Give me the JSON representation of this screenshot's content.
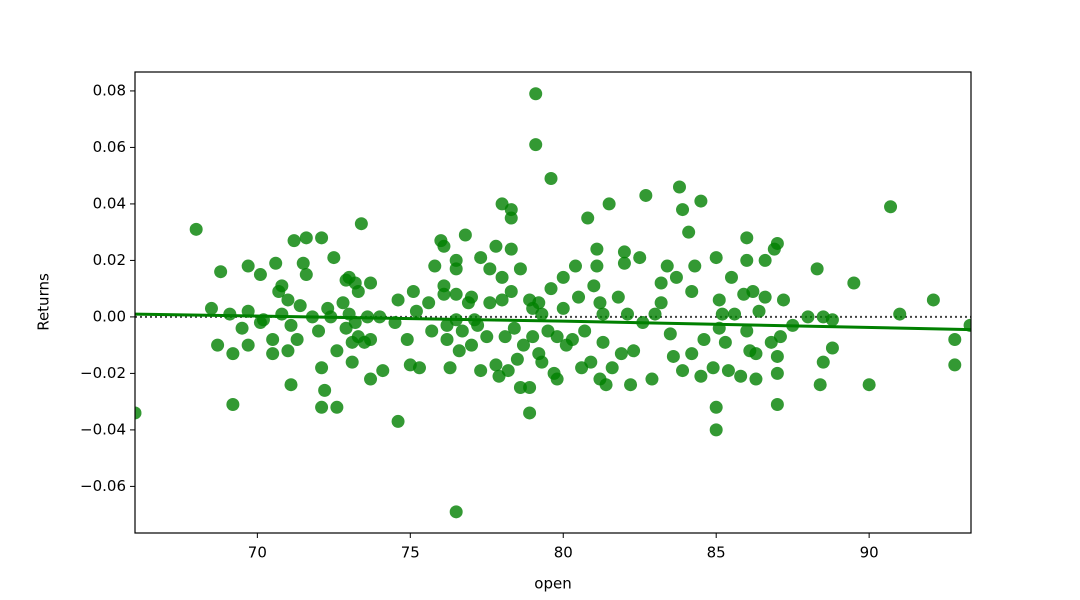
{
  "chart_data": {
    "type": "scatter",
    "x_label": "open",
    "y_label": "Returns",
    "xlim": [
      66.0,
      93.33
    ],
    "ylim": [
      -0.0765,
      0.0867
    ],
    "xticks": [
      70,
      75,
      80,
      85,
      90
    ],
    "yticks": [
      {
        "value": -0.06,
        "label": "−0.06"
      },
      {
        "value": -0.04,
        "label": "−0.04"
      },
      {
        "value": -0.02,
        "label": "−0.02"
      },
      {
        "value": 0,
        "label": "0.00"
      },
      0.02,
      0.04,
      0.06,
      0.08
    ],
    "reference_line": 0,
    "regression_line": {
      "x": [
        66.0,
        80.0,
        93.33
      ],
      "values": [
        0.001,
        -0.0015,
        -0.0045
      ],
      "color": "#008000"
    },
    "series": [
      {
        "color": "#008000",
        "x": [
          66.0,
          68.0,
          68.5,
          68.7,
          68.8,
          69.1,
          69.2,
          69.2,
          69.5,
          69.7,
          69.7,
          69.7,
          70.1,
          70.1,
          70.2,
          70.5,
          70.5,
          70.6,
          70.7,
          70.8,
          70.8,
          71.0,
          71.0,
          71.1,
          71.1,
          71.2,
          71.3,
          71.4,
          71.5,
          71.6,
          71.6,
          71.8,
          72.1,
          72.0,
          72.1,
          72.1,
          72.2,
          72.3,
          72.4,
          72.5,
          72.6,
          72.6,
          72.8,
          72.9,
          72.9,
          73.0,
          73.0,
          73.1,
          73.1,
          73.2,
          73.2,
          73.3,
          73.3,
          73.4,
          73.5,
          73.6,
          73.7,
          73.7,
          73.7,
          74.0,
          74.1,
          74.5,
          74.6,
          74.6,
          74.9,
          75.0,
          75.1,
          75.2,
          75.3,
          75.6,
          75.8,
          75.7,
          76.0,
          76.1,
          76.1,
          76.1,
          76.2,
          76.2,
          76.3,
          76.5,
          76.5,
          76.5,
          76.5,
          76.6,
          76.5,
          76.7,
          76.8,
          76.9,
          77.0,
          77.0,
          77.1,
          77.2,
          77.3,
          77.3,
          77.5,
          77.6,
          77.6,
          77.8,
          77.8,
          77.9,
          78.0,
          78.0,
          78.0,
          78.1,
          78.2,
          78.3,
          78.3,
          78.3,
          78.3,
          78.4,
          78.5,
          78.6,
          78.6,
          78.7,
          78.9,
          78.9,
          78.9,
          79.0,
          79.0,
          79.1,
          79.1,
          79.2,
          79.2,
          79.3,
          79.3,
          79.5,
          79.6,
          79.6,
          79.7,
          79.8,
          79.8,
          80.0,
          80.0,
          80.1,
          80.3,
          80.4,
          80.5,
          80.6,
          80.7,
          80.8,
          80.9,
          81.0,
          81.1,
          81.1,
          81.2,
          81.2,
          81.3,
          81.3,
          81.4,
          81.5,
          81.6,
          81.8,
          81.9,
          82.0,
          82.0,
          82.1,
          82.2,
          82.3,
          82.5,
          82.6,
          82.7,
          82.9,
          83.0,
          83.2,
          83.2,
          83.4,
          83.5,
          83.6,
          83.7,
          83.8,
          83.9,
          83.9,
          84.1,
          84.2,
          84.2,
          84.3,
          84.5,
          84.5,
          84.6,
          84.9,
          85.0,
          85.0,
          85.0,
          85.1,
          85.1,
          85.2,
          85.3,
          85.4,
          85.5,
          85.6,
          85.8,
          85.9,
          86.0,
          86.0,
          86.0,
          86.1,
          86.2,
          86.3,
          86.3,
          86.4,
          86.6,
          86.6,
          86.8,
          86.9,
          87.0,
          87.0,
          87.0,
          87.0,
          87.1,
          87.2,
          87.5,
          88.0,
          88.3,
          88.4,
          88.5,
          88.5,
          88.8,
          88.8,
          89.5,
          90.0,
          90.7,
          91.0,
          92.1,
          92.8,
          92.8,
          93.3
        ],
        "values": [
          -0.034,
          0.031,
          0.003,
          -0.01,
          0.016,
          0.001,
          -0.013,
          -0.031,
          -0.004,
          0.018,
          0.002,
          -0.01,
          0.015,
          -0.002,
          -0.001,
          -0.013,
          -0.008,
          0.019,
          0.009,
          0.011,
          0.001,
          -0.012,
          0.006,
          -0.024,
          -0.003,
          0.027,
          -0.008,
          0.004,
          0.019,
          0.015,
          0.028,
          0.0,
          0.028,
          -0.005,
          -0.018,
          -0.032,
          -0.026,
          0.003,
          0.0,
          0.021,
          -0.012,
          -0.032,
          0.005,
          0.013,
          -0.004,
          0.014,
          0.001,
          -0.009,
          -0.016,
          -0.002,
          0.012,
          0.009,
          -0.007,
          0.033,
          -0.009,
          0.0,
          0.012,
          -0.008,
          -0.022,
          0.0,
          -0.019,
          -0.002,
          0.006,
          -0.037,
          -0.008,
          -0.017,
          0.009,
          0.002,
          -0.018,
          0.005,
          0.018,
          -0.005,
          0.027,
          0.011,
          0.025,
          0.008,
          -0.003,
          -0.008,
          -0.018,
          0.02,
          0.017,
          0.008,
          -0.001,
          -0.012,
          -0.069,
          -0.005,
          0.029,
          0.005,
          0.007,
          -0.01,
          -0.001,
          -0.003,
          0.021,
          -0.019,
          -0.007,
          0.017,
          0.005,
          0.025,
          -0.017,
          -0.021,
          0.04,
          0.014,
          0.006,
          -0.007,
          -0.019,
          0.038,
          0.035,
          0.024,
          0.009,
          -0.004,
          -0.015,
          0.017,
          -0.025,
          -0.01,
          0.006,
          -0.025,
          -0.034,
          0.003,
          -0.007,
          0.061,
          0.079,
          0.005,
          -0.013,
          0.001,
          -0.016,
          -0.005,
          0.049,
          0.01,
          -0.02,
          -0.022,
          -0.007,
          0.014,
          0.003,
          -0.01,
          -0.008,
          0.018,
          0.007,
          -0.018,
          -0.005,
          0.035,
          -0.016,
          0.011,
          0.024,
          0.018,
          0.005,
          -0.022,
          0.001,
          -0.009,
          -0.024,
          0.04,
          -0.018,
          0.007,
          -0.013,
          0.023,
          0.019,
          0.001,
          -0.024,
          -0.012,
          0.021,
          -0.002,
          0.043,
          -0.022,
          0.001,
          0.012,
          0.005,
          0.018,
          -0.006,
          -0.014,
          0.014,
          0.046,
          0.038,
          -0.019,
          0.03,
          0.009,
          -0.013,
          0.018,
          0.041,
          -0.021,
          -0.008,
          -0.018,
          0.021,
          -0.032,
          -0.04,
          0.006,
          -0.004,
          0.001,
          -0.009,
          -0.019,
          0.014,
          0.001,
          -0.021,
          0.008,
          0.028,
          0.02,
          -0.005,
          -0.012,
          0.009,
          -0.022,
          -0.013,
          0.002,
          0.02,
          0.007,
          -0.009,
          0.024,
          0.026,
          -0.014,
          -0.02,
          -0.031,
          -0.007,
          0.006,
          -0.003,
          0.0,
          0.017,
          -0.024,
          -0.016,
          0.0,
          -0.011,
          -0.001,
          0.012,
          -0.024,
          0.039,
          0.001,
          0.006,
          -0.008,
          -0.017,
          -0.003
        ]
      }
    ]
  }
}
